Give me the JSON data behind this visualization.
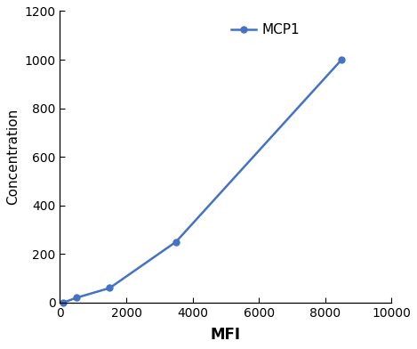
{
  "x": [
    100,
    500,
    1500,
    3500,
    8500
  ],
  "y": [
    0,
    20,
    60,
    250,
    1000
  ],
  "line_color": "#4472c4",
  "marker": "o",
  "marker_size": 5,
  "line_width": 1.8,
  "xlabel": "MFI",
  "ylabel": "Concentration",
  "xlim": [
    0,
    10000
  ],
  "ylim": [
    0,
    1200
  ],
  "xticks": [
    0,
    2000,
    4000,
    6000,
    8000,
    10000
  ],
  "yticks": [
    0,
    200,
    400,
    600,
    800,
    1000,
    1200
  ],
  "legend_label": "MCP1",
  "xlabel_fontsize": 12,
  "ylabel_fontsize": 11,
  "tick_fontsize": 10,
  "legend_fontsize": 11,
  "background_color": "#ffffff"
}
